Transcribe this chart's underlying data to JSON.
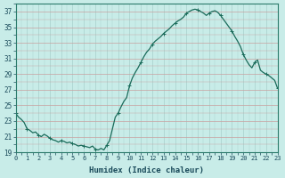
{
  "title": "",
  "xlabel": "Humidex (Indice chaleur)",
  "ylabel": "",
  "xlim": [
    0,
    23
  ],
  "ylim": [
    19,
    38
  ],
  "yticks": [
    19,
    21,
    23,
    25,
    27,
    29,
    31,
    33,
    35,
    37
  ],
  "xticks": [
    0,
    1,
    2,
    3,
    4,
    5,
    6,
    7,
    8,
    9,
    10,
    11,
    12,
    13,
    14,
    15,
    16,
    17,
    18,
    19,
    20,
    21,
    22,
    23
  ],
  "bg_color": "#c8ece8",
  "line_color": "#1a6b5a",
  "x": [
    0,
    0.25,
    0.5,
    0.75,
    1,
    1.25,
    1.5,
    1.75,
    2,
    2.25,
    2.5,
    2.75,
    3,
    3.25,
    3.5,
    3.75,
    4,
    4.25,
    4.5,
    4.75,
    5,
    5.25,
    5.5,
    5.75,
    6,
    6.25,
    6.5,
    6.75,
    7,
    7.25,
    7.5,
    7.75,
    8,
    8.25,
    8.5,
    8.75,
    9,
    9.25,
    9.5,
    9.75,
    10,
    10.25,
    10.5,
    10.75,
    11,
    11.25,
    11.5,
    11.75,
    12,
    12.25,
    12.5,
    12.75,
    13,
    13.25,
    13.5,
    13.75,
    14,
    14.25,
    14.5,
    14.75,
    15,
    15.25,
    15.5,
    15.75,
    16,
    16.25,
    16.5,
    16.75,
    17,
    17.25,
    17.5,
    17.75,
    18,
    18.25,
    18.5,
    18.75,
    19,
    19.25,
    19.5,
    19.75,
    20,
    20.25,
    20.5,
    20.75,
    21,
    21.25,
    21.5,
    21.75,
    22,
    22.25,
    22.5,
    22.75,
    23
  ],
  "y": [
    24.0,
    23.5,
    23.2,
    22.8,
    22.0,
    21.8,
    21.5,
    21.6,
    21.2,
    21.0,
    21.3,
    21.1,
    20.8,
    20.6,
    20.5,
    20.3,
    20.5,
    20.4,
    20.2,
    20.3,
    20.1,
    20.0,
    19.8,
    19.9,
    19.8,
    19.7,
    19.6,
    19.8,
    19.4,
    19.3,
    19.5,
    19.3,
    19.9,
    20.5,
    22.0,
    23.5,
    24.0,
    24.8,
    25.5,
    26.0,
    27.5,
    28.5,
    29.2,
    29.8,
    30.5,
    31.2,
    31.8,
    32.2,
    32.8,
    33.2,
    33.5,
    33.8,
    34.2,
    34.5,
    34.8,
    35.2,
    35.5,
    35.8,
    36.0,
    36.3,
    36.8,
    37.0,
    37.2,
    37.3,
    37.2,
    37.0,
    36.8,
    36.5,
    36.8,
    37.0,
    37.1,
    36.9,
    36.5,
    36.0,
    35.5,
    35.0,
    34.5,
    33.8,
    33.2,
    32.5,
    31.5,
    30.8,
    30.2,
    29.8,
    30.5,
    30.8,
    29.5,
    29.2,
    29.0,
    28.8,
    28.5,
    28.2,
    27.2
  ]
}
